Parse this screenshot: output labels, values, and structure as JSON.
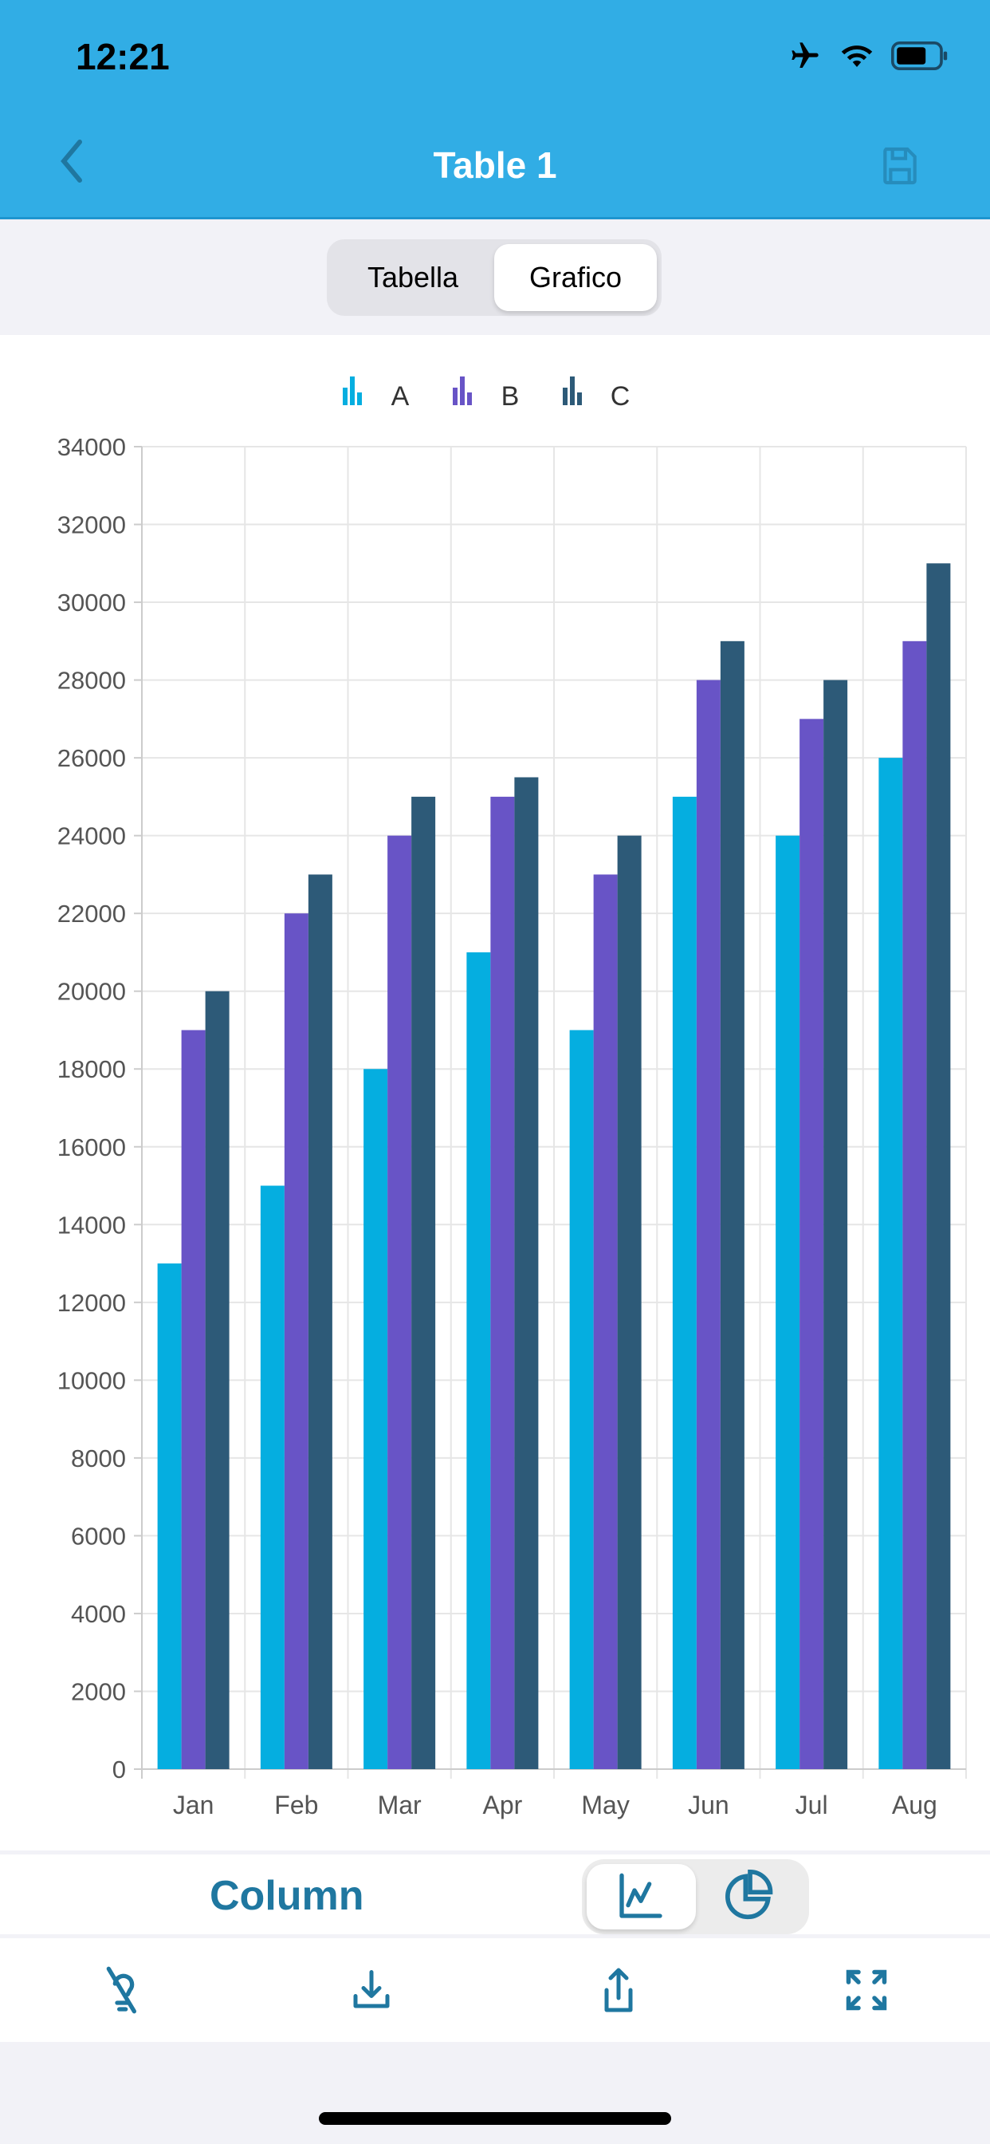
{
  "status_bar": {
    "time": "12:21"
  },
  "header": {
    "title": "Table 1"
  },
  "segment": {
    "items": [
      "Tabella",
      "Grafico"
    ],
    "selected": "Grafico"
  },
  "chart_type": {
    "label": "Column",
    "selected": "line-chart"
  },
  "colors": {
    "header": "#31ade5",
    "accent": "#1f77a0",
    "A": "#05aee0",
    "B": "#6854c6",
    "C": "#2d5a78"
  },
  "chart_data": {
    "type": "bar",
    "categories": [
      "Jan",
      "Feb",
      "Mar",
      "Apr",
      "May",
      "Jun",
      "Jul",
      "Aug"
    ],
    "series": [
      {
        "name": "A",
        "values": [
          13000,
          15000,
          18000,
          21000,
          19000,
          25000,
          24000,
          26000
        ]
      },
      {
        "name": "B",
        "values": [
          19000,
          22000,
          24000,
          25000,
          23000,
          28000,
          27000,
          29000
        ]
      },
      {
        "name": "C",
        "values": [
          20000,
          23000,
          25000,
          25500,
          24000,
          29000,
          28000,
          31000
        ]
      }
    ],
    "ylim": [
      0,
      34000
    ],
    "yticks": [
      0,
      2000,
      4000,
      6000,
      8000,
      10000,
      12000,
      14000,
      16000,
      18000,
      20000,
      22000,
      24000,
      26000,
      28000,
      30000,
      32000,
      34000
    ],
    "grid": true,
    "legend": "top-center",
    "title": "",
    "xlabel": "",
    "ylabel": ""
  }
}
